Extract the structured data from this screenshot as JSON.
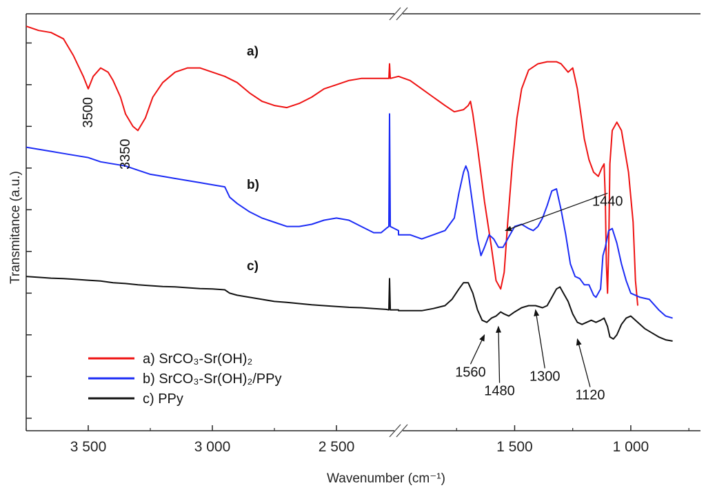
{
  "chart_data": {
    "type": "line",
    "title": "",
    "xlabel": "Wavenumber (cm⁻¹)",
    "ylabel": "Transmitance (a.u.)",
    "x_axis_reversed": true,
    "x_axis_break": [
      2250,
      2000
    ],
    "xlim": [
      3750,
      700
    ],
    "xticks": [
      3500,
      3000,
      2500,
      1500,
      1000
    ],
    "xtick_labels": [
      "3 500",
      "3 000",
      "2 500",
      "1 500",
      "1 000"
    ],
    "ylim": [
      0,
      100
    ],
    "y_ticks_unlabeled": [
      3,
      13,
      23,
      33,
      43,
      53,
      63,
      73,
      83,
      93
    ],
    "grid": false,
    "legend_position": "bottom-left",
    "series": [
      {
        "name": "a) SrCO₃-Sr(OH)₂",
        "color": "#ee1111",
        "panel_label": "a)",
        "points": [
          [
            3750,
            97
          ],
          [
            3700,
            96
          ],
          [
            3650,
            95.5
          ],
          [
            3600,
            94
          ],
          [
            3560,
            90
          ],
          [
            3520,
            85
          ],
          [
            3500,
            82
          ],
          [
            3480,
            85
          ],
          [
            3450,
            87
          ],
          [
            3420,
            86
          ],
          [
            3400,
            84
          ],
          [
            3370,
            80
          ],
          [
            3350,
            76
          ],
          [
            3320,
            73
          ],
          [
            3300,
            72
          ],
          [
            3270,
            75
          ],
          [
            3240,
            80
          ],
          [
            3200,
            83.5
          ],
          [
            3150,
            86
          ],
          [
            3100,
            87
          ],
          [
            3050,
            87
          ],
          [
            3000,
            86
          ],
          [
            2950,
            85
          ],
          [
            2900,
            83.5
          ],
          [
            2850,
            81
          ],
          [
            2800,
            79
          ],
          [
            2750,
            78
          ],
          [
            2700,
            77.5
          ],
          [
            2650,
            78.5
          ],
          [
            2600,
            80
          ],
          [
            2550,
            82
          ],
          [
            2500,
            83
          ],
          [
            2450,
            84
          ],
          [
            2400,
            84.5
          ],
          [
            2350,
            84.5
          ],
          [
            2300,
            84.5
          ],
          [
            2289,
            84.5
          ],
          [
            2286,
            88
          ],
          [
            2283,
            84.5
          ],
          [
            2250,
            85
          ],
          [
            2000,
            85
          ],
          [
            1950,
            84
          ],
          [
            1900,
            82
          ],
          [
            1850,
            80
          ],
          [
            1800,
            78
          ],
          [
            1760,
            76.5
          ],
          [
            1720,
            77
          ],
          [
            1700,
            78
          ],
          [
            1690,
            79
          ],
          [
            1680,
            76
          ],
          [
            1660,
            68
          ],
          [
            1630,
            55
          ],
          [
            1600,
            44
          ],
          [
            1580,
            36
          ],
          [
            1560,
            34
          ],
          [
            1545,
            38
          ],
          [
            1530,
            50
          ],
          [
            1510,
            64
          ],
          [
            1490,
            75
          ],
          [
            1470,
            82
          ],
          [
            1440,
            86.5
          ],
          [
            1400,
            88
          ],
          [
            1360,
            88.5
          ],
          [
            1320,
            88.5
          ],
          [
            1300,
            88
          ],
          [
            1270,
            86
          ],
          [
            1250,
            87
          ],
          [
            1230,
            82
          ],
          [
            1200,
            70
          ],
          [
            1180,
            65
          ],
          [
            1160,
            62
          ],
          [
            1140,
            61
          ],
          [
            1125,
            63
          ],
          [
            1115,
            64
          ],
          [
            1110,
            56
          ],
          [
            1105,
            40
          ],
          [
            1100,
            33
          ],
          [
            1095,
            44
          ],
          [
            1090,
            64
          ],
          [
            1080,
            72
          ],
          [
            1060,
            74
          ],
          [
            1040,
            72
          ],
          [
            1010,
            62
          ],
          [
            990,
            50
          ],
          [
            980,
            36
          ],
          [
            970,
            30
          ]
        ]
      },
      {
        "name": "b) SrCO₃-Sr(OH)₂/PPy",
        "color": "#1b2bf5",
        "panel_label": "b)",
        "points": [
          [
            3750,
            68
          ],
          [
            3700,
            67.5
          ],
          [
            3650,
            67
          ],
          [
            3600,
            66.5
          ],
          [
            3550,
            66
          ],
          [
            3500,
            65.5
          ],
          [
            3450,
            64.5
          ],
          [
            3400,
            64
          ],
          [
            3350,
            63.5
          ],
          [
            3300,
            62.5
          ],
          [
            3250,
            61.5
          ],
          [
            3200,
            61
          ],
          [
            3150,
            60.5
          ],
          [
            3100,
            60
          ],
          [
            3050,
            59.5
          ],
          [
            3000,
            59
          ],
          [
            2950,
            58.5
          ],
          [
            2930,
            56
          ],
          [
            2900,
            54.5
          ],
          [
            2850,
            52.5
          ],
          [
            2800,
            51
          ],
          [
            2750,
            50
          ],
          [
            2700,
            49
          ],
          [
            2650,
            49
          ],
          [
            2600,
            49.5
          ],
          [
            2550,
            50.5
          ],
          [
            2500,
            51
          ],
          [
            2450,
            50.5
          ],
          [
            2400,
            49
          ],
          [
            2350,
            47.5
          ],
          [
            2320,
            47.5
          ],
          [
            2300,
            48.5
          ],
          [
            2289,
            49
          ],
          [
            2286,
            76
          ],
          [
            2283,
            49
          ],
          [
            2250,
            48
          ],
          [
            2000,
            47
          ],
          [
            1950,
            47
          ],
          [
            1900,
            46
          ],
          [
            1850,
            47
          ],
          [
            1800,
            48
          ],
          [
            1760,
            51
          ],
          [
            1740,
            57
          ],
          [
            1720,
            62
          ],
          [
            1710,
            63.5
          ],
          [
            1700,
            62
          ],
          [
            1680,
            54
          ],
          [
            1660,
            46
          ],
          [
            1645,
            42
          ],
          [
            1630,
            44
          ],
          [
            1610,
            47
          ],
          [
            1590,
            46
          ],
          [
            1570,
            44
          ],
          [
            1550,
            44
          ],
          [
            1520,
            47
          ],
          [
            1500,
            49
          ],
          [
            1470,
            49.5
          ],
          [
            1440,
            48.5
          ],
          [
            1420,
            48
          ],
          [
            1400,
            49
          ],
          [
            1380,
            51
          ],
          [
            1360,
            54
          ],
          [
            1340,
            57.5
          ],
          [
            1320,
            58
          ],
          [
            1300,
            53
          ],
          [
            1280,
            47
          ],
          [
            1260,
            40
          ],
          [
            1240,
            37
          ],
          [
            1220,
            36.5
          ],
          [
            1200,
            35
          ],
          [
            1180,
            35
          ],
          [
            1160,
            32.5
          ],
          [
            1150,
            32
          ],
          [
            1130,
            34
          ],
          [
            1120,
            42
          ],
          [
            1110,
            44
          ],
          [
            1095,
            48
          ],
          [
            1080,
            48.5
          ],
          [
            1060,
            45
          ],
          [
            1040,
            40
          ],
          [
            1020,
            36
          ],
          [
            1000,
            33
          ],
          [
            960,
            32
          ],
          [
            920,
            31.5
          ],
          [
            880,
            29
          ],
          [
            850,
            27.5
          ],
          [
            820,
            27
          ]
        ]
      },
      {
        "name": "c) PPy",
        "color": "#111111",
        "panel_label": "c)",
        "points": [
          [
            3750,
            37
          ],
          [
            3700,
            36.8
          ],
          [
            3650,
            36.6
          ],
          [
            3600,
            36.5
          ],
          [
            3550,
            36.3
          ],
          [
            3500,
            36.1
          ],
          [
            3450,
            35.9
          ],
          [
            3400,
            35.5
          ],
          [
            3350,
            35.3
          ],
          [
            3300,
            35
          ],
          [
            3250,
            34.8
          ],
          [
            3200,
            34.6
          ],
          [
            3150,
            34.5
          ],
          [
            3100,
            34.3
          ],
          [
            3050,
            34.1
          ],
          [
            3000,
            34
          ],
          [
            2950,
            33.8
          ],
          [
            2930,
            33
          ],
          [
            2900,
            32.5
          ],
          [
            2850,
            32
          ],
          [
            2800,
            31.5
          ],
          [
            2750,
            31
          ],
          [
            2700,
            30.8
          ],
          [
            2650,
            30.5
          ],
          [
            2600,
            30.2
          ],
          [
            2550,
            30
          ],
          [
            2500,
            29.8
          ],
          [
            2450,
            29.6
          ],
          [
            2400,
            29.5
          ],
          [
            2350,
            29.3
          ],
          [
            2300,
            29.1
          ],
          [
            2289,
            29
          ],
          [
            2286,
            36.5
          ],
          [
            2283,
            29
          ],
          [
            2250,
            29
          ],
          [
            2000,
            28.8
          ],
          [
            1950,
            28.8
          ],
          [
            1900,
            28.8
          ],
          [
            1850,
            29.3
          ],
          [
            1800,
            30
          ],
          [
            1770,
            31.5
          ],
          [
            1740,
            34
          ],
          [
            1720,
            35.5
          ],
          [
            1700,
            35.5
          ],
          [
            1680,
            33
          ],
          [
            1660,
            29
          ],
          [
            1640,
            26.5
          ],
          [
            1620,
            26
          ],
          [
            1600,
            27
          ],
          [
            1580,
            27.5
          ],
          [
            1560,
            28.5
          ],
          [
            1545,
            28
          ],
          [
            1525,
            27.5
          ],
          [
            1500,
            28.5
          ],
          [
            1470,
            29.5
          ],
          [
            1440,
            30
          ],
          [
            1410,
            30
          ],
          [
            1380,
            29.5
          ],
          [
            1360,
            30
          ],
          [
            1340,
            32
          ],
          [
            1320,
            34
          ],
          [
            1305,
            34.5
          ],
          [
            1290,
            33
          ],
          [
            1270,
            31
          ],
          [
            1250,
            28
          ],
          [
            1230,
            26
          ],
          [
            1210,
            25.5
          ],
          [
            1190,
            26
          ],
          [
            1170,
            26.5
          ],
          [
            1150,
            26
          ],
          [
            1130,
            26.5
          ],
          [
            1115,
            27
          ],
          [
            1100,
            25
          ],
          [
            1090,
            22.5
          ],
          [
            1075,
            22
          ],
          [
            1060,
            23
          ],
          [
            1040,
            25.5
          ],
          [
            1020,
            27
          ],
          [
            1000,
            27.5
          ],
          [
            980,
            26.5
          ],
          [
            960,
            25.5
          ],
          [
            940,
            24.5
          ],
          [
            910,
            23.5
          ],
          [
            880,
            22.5
          ],
          [
            850,
            21.8
          ],
          [
            820,
            21.5
          ]
        ]
      }
    ],
    "panel_labels": [
      "a)",
      "b)",
      "c)"
    ],
    "annotations": [
      {
        "text": "3500",
        "x": 3500,
        "y": 80,
        "rotation": -90,
        "arrow": false
      },
      {
        "text": "3350",
        "x": 3350,
        "y": 70,
        "rotation": -90,
        "arrow": false
      },
      {
        "text": "1440",
        "x": 1100,
        "y": 54,
        "arrow_to": [
          1540,
          48
        ],
        "arrow": true
      },
      {
        "text": "1560",
        "x": 1690,
        "y": 13,
        "arrow_to": [
          1630,
          23
        ],
        "arrow": true
      },
      {
        "text": "1480",
        "x": 1565,
        "y": 8.5,
        "arrow_to": [
          1570,
          25
        ],
        "arrow": true
      },
      {
        "text": "1300",
        "x": 1370,
        "y": 12,
        "arrow_to": [
          1410,
          29
        ],
        "arrow": true
      },
      {
        "text": "1120",
        "x": 1175,
        "y": 7.5,
        "arrow_to": [
          1230,
          22
        ],
        "arrow": true
      }
    ]
  }
}
